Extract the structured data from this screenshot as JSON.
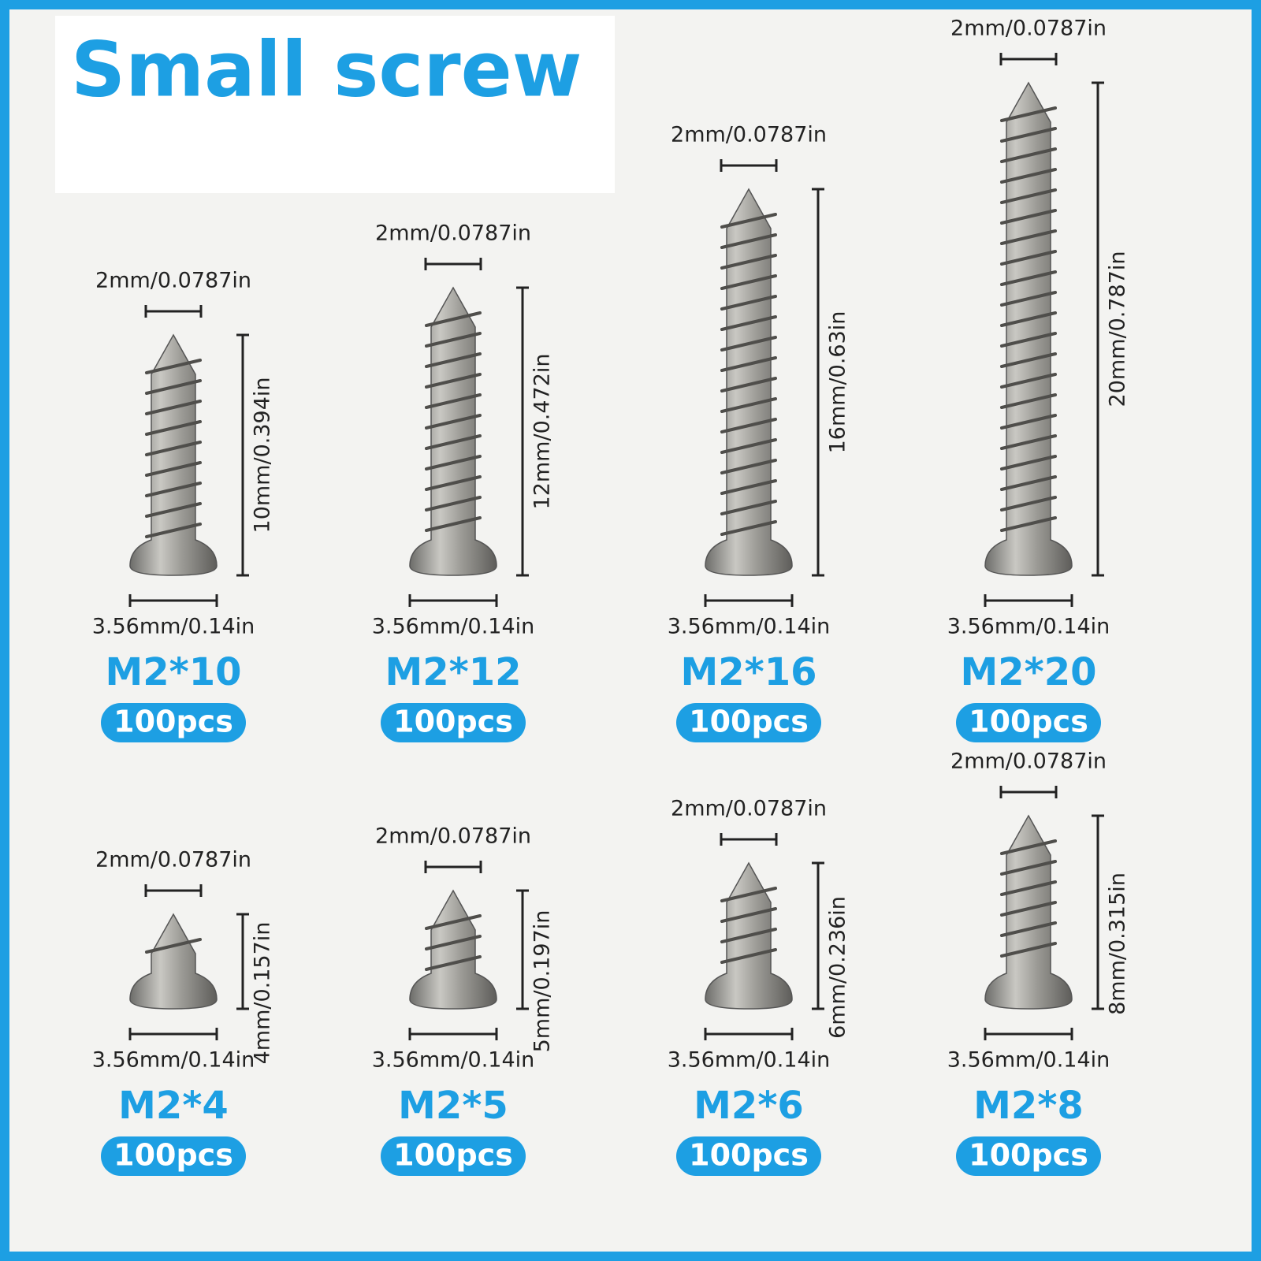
{
  "title": "Small screw",
  "screws": [
    {
      "model": "M2*10",
      "quantity": "100pcs",
      "diameter": "2mm/0.0787in",
      "length": "10mm/0.394in",
      "head": "3.56mm/0.14in"
    },
    {
      "model": "M2*12",
      "quantity": "100pcs",
      "diameter": "2mm/0.0787in",
      "length": "12mm/0.472in",
      "head": "3.56mm/0.14in"
    },
    {
      "model": "M2*16",
      "quantity": "100pcs",
      "diameter": "2mm/0.0787in",
      "length": "16mm/0.63in",
      "head": "3.56mm/0.14in"
    },
    {
      "model": "M2*20",
      "quantity": "100pcs",
      "diameter": "2mm/0.0787in",
      "length": "20mm/0.787in",
      "head": "3.56mm/0.14in"
    },
    {
      "model": "M2*4",
      "quantity": "100pcs",
      "diameter": "2mm/0.0787in",
      "length": "4mm/0.157in",
      "head": "3.56mm/0.14in"
    },
    {
      "model": "M2*5",
      "quantity": "100pcs",
      "diameter": "2mm/0.0787in",
      "length": "5mm/0.197in",
      "head": "3.56mm/0.14in"
    },
    {
      "model": "M2*6",
      "quantity": "100pcs",
      "diameter": "2mm/0.0787in",
      "length": "6mm/0.236in",
      "head": "3.56mm/0.14in"
    },
    {
      "model": "M2*8",
      "quantity": "100pcs",
      "diameter": "2mm/0.0787in",
      "length": "8mm/0.315in",
      "head": "3.56mm/0.14in"
    }
  ]
}
